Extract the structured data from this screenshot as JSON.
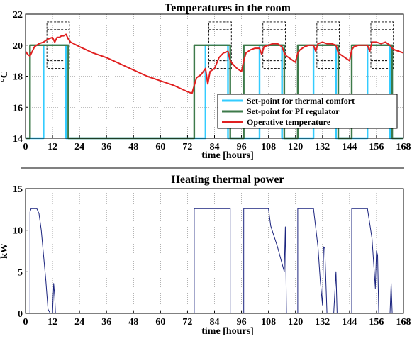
{
  "chart_data": [
    {
      "type": "line",
      "title": "Temperatures in the room",
      "xlabel": "time [hours]",
      "ylabel": "°C",
      "xlim": [
        0,
        168
      ],
      "ylim": [
        14,
        22
      ],
      "xticks": [
        0,
        12,
        24,
        36,
        48,
        60,
        72,
        84,
        96,
        108,
        120,
        132,
        144,
        156,
        168
      ],
      "yticks": [
        14,
        16,
        18,
        20,
        22
      ],
      "grid": true,
      "legend_position": "lower-right",
      "series": [
        {
          "name": "Set-point for thermal comfort",
          "color": "#33ccff",
          "x": [
            0,
            8,
            8,
            18,
            18,
            80,
            80,
            90,
            90,
            104,
            104,
            114,
            114,
            128,
            128,
            138,
            138,
            152,
            152,
            162,
            162,
            168
          ],
          "y": [
            14,
            14,
            20,
            20,
            14,
            14,
            20,
            20,
            14,
            14,
            20,
            20,
            14,
            14,
            20,
            20,
            14,
            14,
            20,
            20,
            14,
            14
          ]
        },
        {
          "name": "Set-point for PI regulator",
          "color": "#3d7a4a",
          "x": [
            0,
            2,
            2,
            19,
            19,
            75,
            75,
            91,
            91,
            97,
            97,
            115,
            115,
            121,
            121,
            139,
            139,
            145,
            145,
            163,
            163,
            168
          ],
          "y": [
            14,
            14,
            20,
            20,
            14,
            14,
            20,
            20,
            14,
            14,
            20,
            20,
            14,
            14,
            20,
            20,
            14,
            14,
            20,
            20,
            14,
            14
          ]
        },
        {
          "name": "Operative temperature",
          "color": "#e02020",
          "x": [
            0,
            1,
            2,
            4,
            6,
            8,
            10,
            12,
            13,
            14,
            15,
            16,
            17,
            18,
            19,
            20,
            24,
            30,
            36,
            42,
            48,
            54,
            60,
            66,
            72,
            74,
            75,
            76,
            78,
            80,
            81,
            82,
            84,
            86,
            88,
            90,
            91,
            92,
            94,
            96,
            97,
            98,
            100,
            102,
            104,
            105,
            106,
            108,
            110,
            112,
            114,
            115,
            116,
            118,
            120,
            121,
            122,
            124,
            126,
            128,
            129,
            130,
            132,
            134,
            136,
            138,
            139,
            140,
            142,
            144,
            145,
            146,
            148,
            150,
            152,
            153,
            154,
            156,
            158,
            160,
            162,
            163,
            164,
            166,
            168
          ],
          "y": [
            19.6,
            19.4,
            19.3,
            19.9,
            20.1,
            20.2,
            20.4,
            20.5,
            20.2,
            20.5,
            20.5,
            20.6,
            20.6,
            20.7,
            20.4,
            20.2,
            19.9,
            19.5,
            19.2,
            18.8,
            18.4,
            18.0,
            17.7,
            17.4,
            17.0,
            16.9,
            17.4,
            17.9,
            18.1,
            18.5,
            17.5,
            18.3,
            18.5,
            19.2,
            19.5,
            19.6,
            19.0,
            18.8,
            18.5,
            18.3,
            19.0,
            19.5,
            19.7,
            19.8,
            19.8,
            19.4,
            19.9,
            20.0,
            20.1,
            20.1,
            19.9,
            19.5,
            19.3,
            19.1,
            18.9,
            19.5,
            19.7,
            19.9,
            20.0,
            20.0,
            19.6,
            20.1,
            20.2,
            20.1,
            20.1,
            20.0,
            19.5,
            19.4,
            19.2,
            19.0,
            19.7,
            19.9,
            20.0,
            20.0,
            20.0,
            19.6,
            20.2,
            20.2,
            20.1,
            20.2,
            20.0,
            19.8,
            19.7,
            19.6,
            19.5
          ]
        }
      ],
      "annotations": [
        {
          "type": "dashed-box",
          "x": [
            9.5,
            19.5
          ],
          "y": [
            18.5,
            21.5
          ]
        },
        {
          "type": "dashed-box",
          "x": [
            81.5,
            91.5
          ],
          "y": [
            18.5,
            21.5
          ]
        },
        {
          "type": "dashed-box",
          "x": [
            105.5,
            115.5
          ],
          "y": [
            18.5,
            21.5
          ]
        },
        {
          "type": "dashed-box",
          "x": [
            129.5,
            139.5
          ],
          "y": [
            18.5,
            21.5
          ]
        },
        {
          "type": "dashed-box",
          "x": [
            153.5,
            163.5
          ],
          "y": [
            18.5,
            21.5
          ]
        }
      ]
    },
    {
      "type": "line",
      "title": "Heating thermal power",
      "xlabel": "time [hours]",
      "ylabel": "kW",
      "xlim": [
        0,
        168
      ],
      "ylim": [
        0,
        15
      ],
      "xticks": [
        0,
        12,
        24,
        36,
        48,
        60,
        72,
        84,
        96,
        108,
        120,
        132,
        144,
        156,
        168
      ],
      "yticks": [
        0,
        5,
        10,
        15
      ],
      "grid": true,
      "series": [
        {
          "name": "",
          "color": "#1a237e",
          "x": [
            0,
            2,
            2,
            2.5,
            3,
            5,
            6,
            7,
            8,
            9,
            10,
            11,
            11.5,
            12,
            12.5,
            13,
            13.3,
            13.6,
            14,
            75,
            75,
            91,
            91,
            97,
            97,
            108,
            109,
            112,
            114,
            115,
            115.5,
            116,
            121,
            121,
            128,
            130,
            131,
            132,
            132.5,
            133,
            134,
            137,
            138,
            138.5,
            139,
            145,
            145,
            152,
            154,
            155,
            155.5,
            156,
            156.5,
            157,
            158,
            162,
            162.5,
            163,
            168
          ],
          "y": [
            0,
            0,
            12.2,
            12.6,
            12.6,
            12.6,
            12.0,
            10.0,
            7.0,
            4.0,
            0.5,
            0,
            0,
            0,
            3.6,
            2.0,
            0,
            0,
            0,
            0,
            12.6,
            12.6,
            0,
            0,
            12.6,
            12.6,
            10.5,
            8.0,
            6.0,
            5.0,
            10.4,
            0,
            0,
            12.6,
            12.6,
            8.0,
            4.0,
            1.0,
            8.0,
            7.8,
            0,
            0,
            5.0,
            0,
            0,
            0,
            12.6,
            12.6,
            9.0,
            5.0,
            3.0,
            7.5,
            7.0,
            0,
            0,
            0,
            3.6,
            0,
            0
          ]
        }
      ]
    }
  ]
}
